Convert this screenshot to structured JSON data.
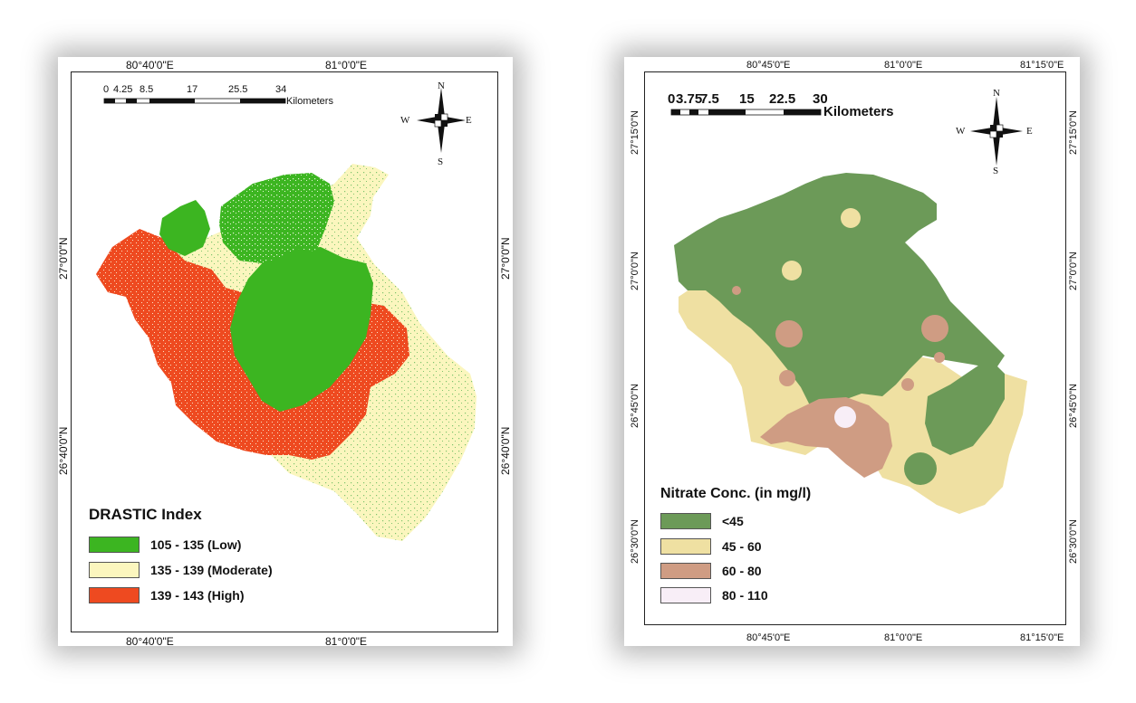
{
  "left_map": {
    "top_coords": [
      "80°40'0\"E",
      "81°0'0\"E"
    ],
    "bottom_coords": [
      "80°40'0\"E",
      "81°0'0\"E"
    ],
    "left_coords": [
      "27°0'0\"N",
      "26°40'0\"N"
    ],
    "right_coords": [
      "27°0'0\"N",
      "26°40'0\"N"
    ],
    "scale": {
      "ticks": [
        "0",
        "4.25",
        "8.5",
        "17",
        "25.5",
        "34"
      ],
      "unit": "Kilometers"
    },
    "compass": {
      "n": "N",
      "s": "S",
      "e": "E",
      "w": "W"
    },
    "legend": {
      "title": "DRASTIC Index",
      "items": [
        {
          "label": "105 - 135 (Low)",
          "color": "#3cb521"
        },
        {
          "label": "135 - 139 (Moderate)",
          "color": "#fbf6be"
        },
        {
          "label": "139 - 143 (High)",
          "color": "#ee4a20"
        }
      ]
    }
  },
  "right_map": {
    "top_coords": [
      "80°45'0\"E",
      "81°0'0\"E",
      "81°15'0\"E"
    ],
    "bottom_coords": [
      "80°45'0\"E",
      "81°0'0\"E",
      "81°15'0\"E"
    ],
    "left_coords": [
      "27°15'0\"N",
      "27°0'0\"N",
      "26°45'0\"N",
      "26°30'0\"N"
    ],
    "right_coords": [
      "27°15'0\"N",
      "27°0'0\"N",
      "26°45'0\"N",
      "26°30'0\"N"
    ],
    "scale": {
      "ticks": [
        "0",
        "3.75",
        "7.5",
        "15",
        "22.5",
        "30"
      ],
      "unit": "Kilometers"
    },
    "compass": {
      "n": "N",
      "s": "S",
      "e": "E",
      "w": "W"
    },
    "legend": {
      "title": "Nitrate Conc. (in mg/l)",
      "items": [
        {
          "label": "<45",
          "color": "#6c9a58"
        },
        {
          "label": "45 - 60",
          "color": "#efe0a2"
        },
        {
          "label": "60 - 80",
          "color": "#cf9c83"
        },
        {
          "label": "80 - 110",
          "color": "#f8eef7"
        }
      ]
    }
  }
}
